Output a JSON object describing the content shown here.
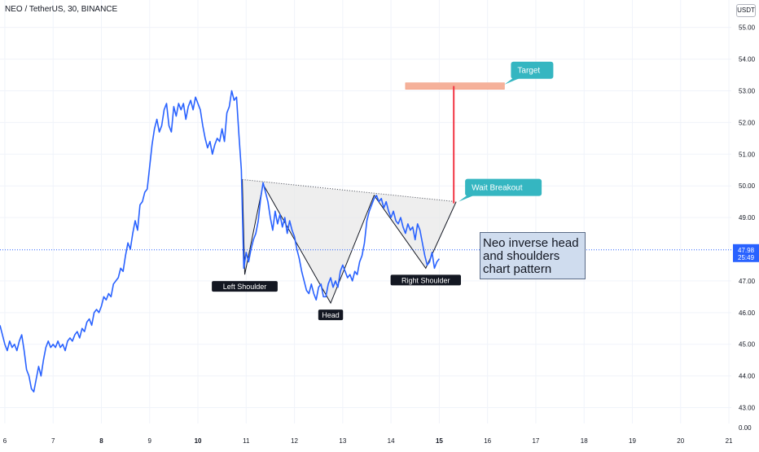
{
  "header": {
    "title": "NEO / TetherUS, 30, BINANCE",
    "currency": "USDT"
  },
  "annotations": {
    "note_lines": [
      "Neo inverse head",
      "and shoulders",
      "chart pattern"
    ]
  },
  "colors": {
    "price_line": "#2962ff",
    "pattern_fill": "#e8e8e8",
    "callout": "#35b6c1",
    "target_bar": "#f5b19a",
    "target_line": "#f23645",
    "grid": "#f0f3fa",
    "current_price_line": "#2962ff"
  },
  "chart_data": {
    "type": "line",
    "title": "",
    "xlabel": "",
    "ylabel": "",
    "xlim": [
      5.9,
      21.05
    ],
    "ylim": [
      42.5,
      55.3
    ],
    "x_ticks": [
      {
        "v": 6,
        "label": "6"
      },
      {
        "v": 7,
        "label": "7"
      },
      {
        "v": 8,
        "label": "8",
        "bold": true
      },
      {
        "v": 9,
        "label": "9"
      },
      {
        "v": 10,
        "label": "10",
        "bold": true
      },
      {
        "v": 11,
        "label": "11"
      },
      {
        "v": 12,
        "label": "12"
      },
      {
        "v": 13,
        "label": "13"
      },
      {
        "v": 14,
        "label": "14"
      },
      {
        "v": 15,
        "label": "15",
        "bold": true
      },
      {
        "v": 16,
        "label": "16"
      },
      {
        "v": 17,
        "label": "17"
      },
      {
        "v": 18,
        "label": "18"
      },
      {
        "v": 19,
        "label": "19"
      },
      {
        "v": 20,
        "label": "20"
      },
      {
        "v": 21,
        "label": "21"
      }
    ],
    "y_ticks": [
      {
        "v": 55,
        "label": "55.00"
      },
      {
        "v": 54,
        "label": "54.00"
      },
      {
        "v": 53,
        "label": "53.00"
      },
      {
        "v": 52,
        "label": "52.00"
      },
      {
        "v": 51,
        "label": "51.00"
      },
      {
        "v": 50,
        "label": "50.00"
      },
      {
        "v": 49,
        "label": "49.00"
      },
      {
        "v": 47,
        "label": "47.00"
      },
      {
        "v": 46,
        "label": "46.00"
      },
      {
        "v": 45,
        "label": "45.00"
      },
      {
        "v": 44,
        "label": "44.00"
      },
      {
        "v": 43,
        "label": "43.00"
      }
    ],
    "bottom_tick_label": "0.00",
    "current_price": {
      "value": 47.98,
      "label": "47.98",
      "countdown": "25:49"
    },
    "series": [
      {
        "values": [
          [
            5.9,
            45.6
          ],
          [
            5.95,
            45.3
          ],
          [
            6.0,
            45.0
          ],
          [
            6.05,
            44.8
          ],
          [
            6.1,
            45.1
          ],
          [
            6.15,
            44.9
          ],
          [
            6.2,
            45.0
          ],
          [
            6.25,
            44.8
          ],
          [
            6.3,
            45.1
          ],
          [
            6.35,
            45.3
          ],
          [
            6.4,
            44.8
          ],
          [
            6.45,
            44.2
          ],
          [
            6.5,
            44.0
          ],
          [
            6.55,
            43.6
          ],
          [
            6.6,
            43.5
          ],
          [
            6.65,
            43.9
          ],
          [
            6.7,
            44.3
          ],
          [
            6.75,
            44.0
          ],
          [
            6.8,
            44.5
          ],
          [
            6.85,
            44.9
          ],
          [
            6.9,
            45.1
          ],
          [
            6.95,
            44.9
          ],
          [
            7.0,
            45.0
          ],
          [
            7.05,
            44.9
          ],
          [
            7.1,
            45.1
          ],
          [
            7.15,
            44.9
          ],
          [
            7.2,
            45.0
          ],
          [
            7.25,
            44.8
          ],
          [
            7.3,
            45.1
          ],
          [
            7.35,
            45.2
          ],
          [
            7.4,
            45.1
          ],
          [
            7.45,
            45.3
          ],
          [
            7.5,
            45.4
          ],
          [
            7.55,
            45.2
          ],
          [
            7.6,
            45.5
          ],
          [
            7.65,
            45.4
          ],
          [
            7.7,
            45.7
          ],
          [
            7.75,
            45.8
          ],
          [
            7.8,
            45.6
          ],
          [
            7.85,
            46.0
          ],
          [
            7.9,
            46.1
          ],
          [
            7.95,
            46.0
          ],
          [
            8.0,
            46.2
          ],
          [
            8.05,
            46.5
          ],
          [
            8.1,
            46.4
          ],
          [
            8.15,
            46.6
          ],
          [
            8.2,
            46.5
          ],
          [
            8.25,
            46.9
          ],
          [
            8.3,
            47.0
          ],
          [
            8.35,
            47.1
          ],
          [
            8.4,
            47.4
          ],
          [
            8.45,
            47.3
          ],
          [
            8.5,
            47.8
          ],
          [
            8.55,
            48.2
          ],
          [
            8.6,
            48.0
          ],
          [
            8.65,
            48.5
          ],
          [
            8.7,
            48.9
          ],
          [
            8.75,
            48.6
          ],
          [
            8.8,
            49.4
          ],
          [
            8.85,
            49.5
          ],
          [
            8.9,
            49.8
          ],
          [
            8.95,
            49.9
          ],
          [
            9.0,
            50.6
          ],
          [
            9.05,
            51.3
          ],
          [
            9.1,
            51.8
          ],
          [
            9.15,
            52.1
          ],
          [
            9.2,
            51.7
          ],
          [
            9.25,
            51.9
          ],
          [
            9.3,
            52.4
          ],
          [
            9.35,
            52.6
          ],
          [
            9.4,
            51.9
          ],
          [
            9.45,
            51.7
          ],
          [
            9.5,
            52.5
          ],
          [
            9.55,
            52.2
          ],
          [
            9.6,
            52.6
          ],
          [
            9.65,
            52.4
          ],
          [
            9.7,
            52.6
          ],
          [
            9.75,
            52.1
          ],
          [
            9.8,
            52.5
          ],
          [
            9.85,
            52.7
          ],
          [
            9.9,
            52.4
          ],
          [
            9.95,
            52.8
          ],
          [
            10.0,
            52.6
          ],
          [
            10.05,
            52.4
          ],
          [
            10.1,
            51.9
          ],
          [
            10.15,
            51.5
          ],
          [
            10.2,
            51.2
          ],
          [
            10.25,
            51.4
          ],
          [
            10.3,
            51.0
          ],
          [
            10.35,
            51.3
          ],
          [
            10.4,
            51.5
          ],
          [
            10.45,
            51.4
          ],
          [
            10.5,
            51.8
          ],
          [
            10.55,
            51.4
          ],
          [
            10.6,
            52.3
          ],
          [
            10.65,
            52.5
          ],
          [
            10.7,
            53.0
          ],
          [
            10.75,
            52.7
          ],
          [
            10.8,
            52.8
          ],
          [
            10.85,
            51.6
          ],
          [
            10.9,
            50.5
          ],
          [
            10.95,
            47.4
          ],
          [
            11.0,
            47.9
          ],
          [
            11.05,
            47.6
          ],
          [
            11.1,
            48.0
          ],
          [
            11.15,
            48.3
          ],
          [
            11.2,
            48.5
          ],
          [
            11.25,
            48.9
          ],
          [
            11.3,
            49.6
          ],
          [
            11.35,
            50.1
          ],
          [
            11.4,
            49.8
          ],
          [
            11.45,
            49.5
          ],
          [
            11.5,
            49.0
          ],
          [
            11.55,
            48.6
          ],
          [
            11.6,
            49.2
          ],
          [
            11.65,
            48.8
          ],
          [
            11.7,
            49.1
          ],
          [
            11.75,
            48.7
          ],
          [
            11.8,
            49.0
          ],
          [
            11.85,
            48.5
          ],
          [
            11.9,
            48.9
          ],
          [
            11.95,
            48.6
          ],
          [
            12.0,
            48.4
          ],
          [
            12.05,
            48.0
          ],
          [
            12.1,
            47.7
          ],
          [
            12.15,
            47.3
          ],
          [
            12.2,
            47.0
          ],
          [
            12.25,
            46.7
          ],
          [
            12.3,
            46.6
          ],
          [
            12.35,
            46.9
          ],
          [
            12.4,
            46.6
          ],
          [
            12.45,
            46.4
          ],
          [
            12.5,
            46.8
          ],
          [
            12.55,
            46.9
          ],
          [
            12.6,
            46.5
          ],
          [
            12.65,
            46.5
          ],
          [
            12.7,
            46.9
          ],
          [
            12.75,
            47.1
          ],
          [
            12.8,
            46.8
          ],
          [
            12.85,
            47.0
          ],
          [
            12.9,
            46.8
          ],
          [
            12.95,
            47.3
          ],
          [
            13.0,
            47.5
          ],
          [
            13.05,
            47.3
          ],
          [
            13.1,
            47.1
          ],
          [
            13.15,
            47.2
          ],
          [
            13.2,
            47.0
          ],
          [
            13.25,
            47.3
          ],
          [
            13.3,
            47.2
          ],
          [
            13.35,
            47.6
          ],
          [
            13.4,
            47.8
          ],
          [
            13.45,
            48.2
          ],
          [
            13.5,
            48.9
          ],
          [
            13.55,
            49.2
          ],
          [
            13.6,
            49.4
          ],
          [
            13.65,
            49.6
          ],
          [
            13.7,
            49.7
          ],
          [
            13.75,
            49.5
          ],
          [
            13.8,
            49.6
          ],
          [
            13.85,
            49.3
          ],
          [
            13.9,
            49.5
          ],
          [
            13.95,
            49.2
          ],
          [
            14.0,
            49.0
          ],
          [
            14.05,
            49.2
          ],
          [
            14.1,
            48.9
          ],
          [
            14.15,
            48.8
          ],
          [
            14.2,
            49.0
          ],
          [
            14.25,
            48.7
          ],
          [
            14.3,
            48.5
          ],
          [
            14.35,
            48.8
          ],
          [
            14.4,
            48.6
          ],
          [
            14.45,
            48.7
          ],
          [
            14.5,
            48.3
          ],
          [
            14.55,
            48.8
          ],
          [
            14.6,
            48.6
          ],
          [
            14.65,
            48.2
          ],
          [
            14.7,
            47.8
          ],
          [
            14.75,
            47.5
          ],
          [
            14.8,
            47.6
          ],
          [
            14.85,
            47.9
          ],
          [
            14.9,
            47.4
          ],
          [
            14.95,
            47.6
          ],
          [
            15.0,
            47.7
          ]
        ]
      }
    ],
    "pattern": {
      "points": [
        [
          10.92,
          50.2
        ],
        [
          10.97,
          47.2
        ],
        [
          11.35,
          50.05
        ],
        [
          12.75,
          46.3
        ],
        [
          13.65,
          49.7
        ],
        [
          14.72,
          47.4
        ],
        [
          15.35,
          49.5
        ]
      ],
      "neckline": [
        [
          10.92,
          50.2
        ],
        [
          15.35,
          49.5
        ]
      ],
      "labels": [
        {
          "text": "Left Shoulder",
          "x": 10.97,
          "y": 47.2,
          "pos": "below"
        },
        {
          "text": "Head",
          "x": 12.75,
          "y": 46.3,
          "pos": "below"
        },
        {
          "text": "Right Shoulder",
          "x": 14.72,
          "y": 47.4,
          "pos": "below"
        }
      ]
    },
    "target": {
      "x_start": 14.3,
      "x_end": 16.35,
      "y": 53.15,
      "line_x": 15.3,
      "line_top": 53.15,
      "line_bottom": 49.45
    },
    "callouts": [
      {
        "text": "Target",
        "x": 16.35,
        "y": 53.2
      },
      {
        "text": "Wait Breakout",
        "x": 15.4,
        "y": 49.5
      }
    ]
  }
}
